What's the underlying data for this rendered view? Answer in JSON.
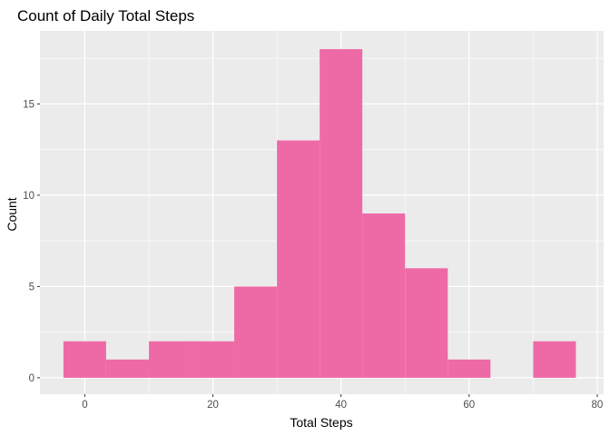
{
  "chart_data": {
    "type": "bar",
    "title": "Count of Daily Total Steps",
    "xlabel": "Total Steps",
    "ylabel": "Count",
    "xlim": [
      -7,
      81
    ],
    "ylim": [
      -0.9,
      19
    ],
    "x_ticks": [
      0,
      20,
      40,
      60,
      80
    ],
    "y_ticks": [
      0,
      5,
      10,
      15
    ],
    "bins": [
      {
        "x0": -3.33,
        "x1": 3.33,
        "count": 2
      },
      {
        "x0": 3.33,
        "x1": 10.0,
        "count": 1
      },
      {
        "x0": 10.0,
        "x1": 16.67,
        "count": 2
      },
      {
        "x0": 16.67,
        "x1": 23.33,
        "count": 2
      },
      {
        "x0": 23.33,
        "x1": 30.0,
        "count": 5
      },
      {
        "x0": 30.0,
        "x1": 36.67,
        "count": 13
      },
      {
        "x0": 36.67,
        "x1": 43.33,
        "count": 18
      },
      {
        "x0": 43.33,
        "x1": 50.0,
        "count": 9
      },
      {
        "x0": 50.0,
        "x1": 56.67,
        "count": 6
      },
      {
        "x0": 56.67,
        "x1": 63.33,
        "count": 1
      },
      {
        "x0": 63.33,
        "x1": 70.0,
        "count": 0
      },
      {
        "x0": 70.0,
        "x1": 76.67,
        "count": 2
      }
    ],
    "grid": true,
    "colors": {
      "bar": "#ee6aa7",
      "panel": "#ebebeb",
      "grid": "#ffffff"
    }
  }
}
